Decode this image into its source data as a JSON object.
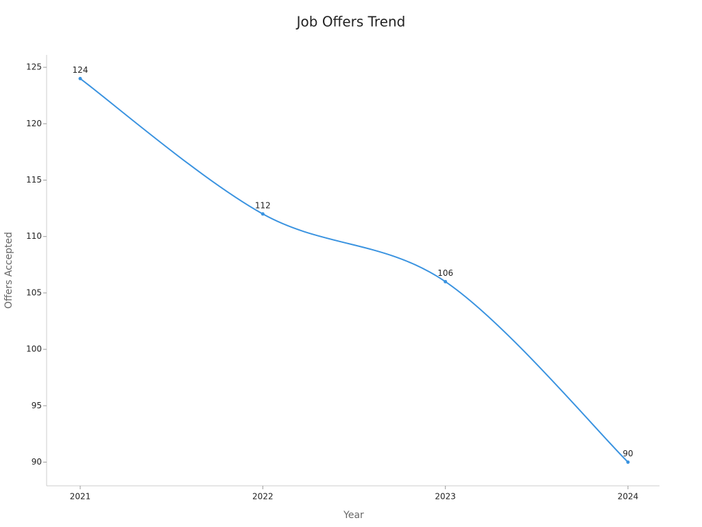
{
  "chart_data": {
    "type": "line",
    "title": "Job Offers Trend",
    "x_label": "Year",
    "y_label": "Offers Accepted",
    "categories": [
      "2021",
      "2022",
      "2023",
      "2024"
    ],
    "series": [
      {
        "name": "Offers Accepted",
        "color": "#3a93e0",
        "values": [
          124,
          112,
          106,
          90
        ]
      }
    ],
    "ylim": [
      87.9,
      126.1
    ],
    "yticks": [
      90,
      95,
      100,
      105,
      110,
      115,
      120,
      125
    ],
    "grid": false,
    "smooth": true
  }
}
